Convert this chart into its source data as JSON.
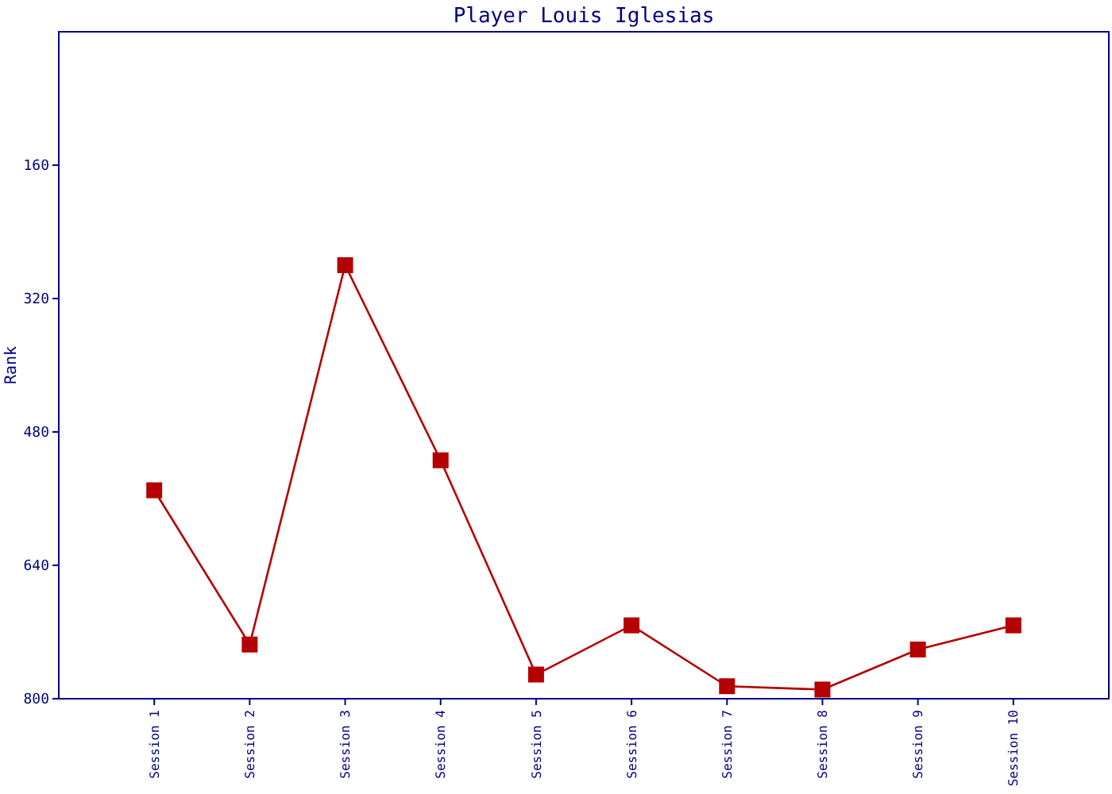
{
  "chart_data": {
    "type": "line",
    "title": "Player Louis Iglesias",
    "ylabel": "Rank",
    "categories": [
      "Session 1",
      "Session 2",
      "Session 3",
      "Session 4",
      "Session 5",
      "Session 6",
      "Session 7",
      "Session 8",
      "Session 9",
      "Session 10"
    ],
    "series": [
      {
        "color": "#b40000",
        "values": [
          550,
          735,
          280,
          514,
          771,
          712,
          785,
          789,
          741,
          712
        ]
      }
    ],
    "ylim": [
      800,
      0
    ],
    "yticks": [
      160,
      320,
      480,
      640,
      800
    ],
    "marker": "square",
    "line_style": "solid",
    "grid": false
  }
}
